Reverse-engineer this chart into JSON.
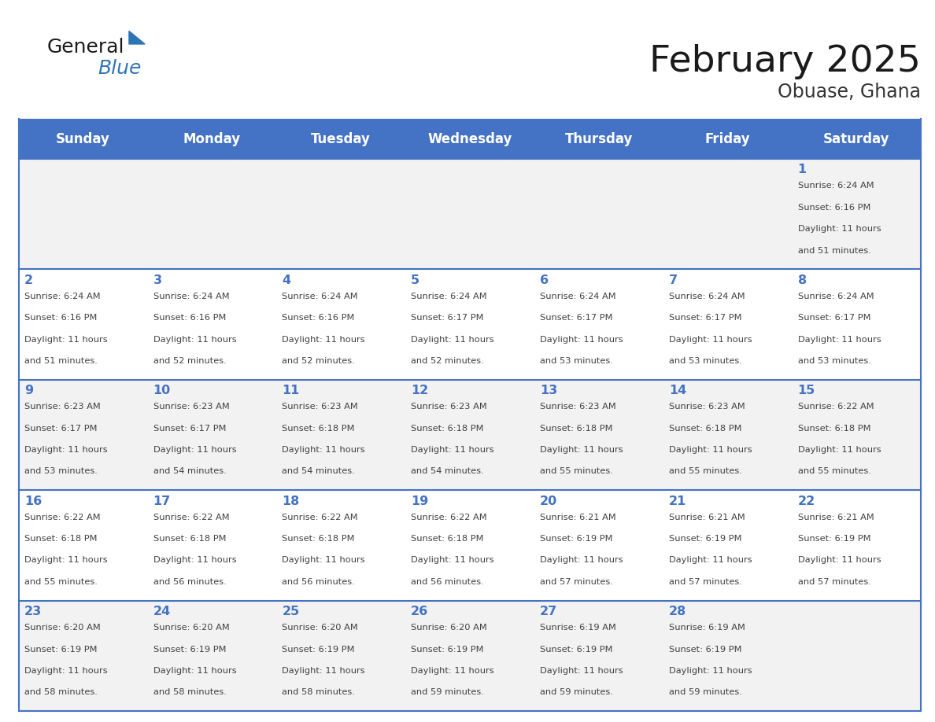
{
  "title": "February 2025",
  "subtitle": "Obuase, Ghana",
  "days_of_week": [
    "Sunday",
    "Monday",
    "Tuesday",
    "Wednesday",
    "Thursday",
    "Friday",
    "Saturday"
  ],
  "header_bg": "#4472C4",
  "header_text": "#FFFFFF",
  "cell_bg_even": "#F2F2F2",
  "cell_bg_odd": "#FFFFFF",
  "day_num_color": "#4472C4",
  "text_color": "#404040",
  "line_color": "#4472C4",
  "calendar": [
    [
      null,
      null,
      null,
      null,
      null,
      null,
      1
    ],
    [
      2,
      3,
      4,
      5,
      6,
      7,
      8
    ],
    [
      9,
      10,
      11,
      12,
      13,
      14,
      15
    ],
    [
      16,
      17,
      18,
      19,
      20,
      21,
      22
    ],
    [
      23,
      24,
      25,
      26,
      27,
      28,
      null
    ]
  ],
  "sun_times": {
    "1": {
      "rise": "6:24 AM",
      "set": "6:16 PM",
      "hours": "11 hours",
      "mins": "and 51 minutes."
    },
    "2": {
      "rise": "6:24 AM",
      "set": "6:16 PM",
      "hours": "11 hours",
      "mins": "and 51 minutes."
    },
    "3": {
      "rise": "6:24 AM",
      "set": "6:16 PM",
      "hours": "11 hours",
      "mins": "and 52 minutes."
    },
    "4": {
      "rise": "6:24 AM",
      "set": "6:16 PM",
      "hours": "11 hours",
      "mins": "and 52 minutes."
    },
    "5": {
      "rise": "6:24 AM",
      "set": "6:17 PM",
      "hours": "11 hours",
      "mins": "and 52 minutes."
    },
    "6": {
      "rise": "6:24 AM",
      "set": "6:17 PM",
      "hours": "11 hours",
      "mins": "and 53 minutes."
    },
    "7": {
      "rise": "6:24 AM",
      "set": "6:17 PM",
      "hours": "11 hours",
      "mins": "and 53 minutes."
    },
    "8": {
      "rise": "6:24 AM",
      "set": "6:17 PM",
      "hours": "11 hours",
      "mins": "and 53 minutes."
    },
    "9": {
      "rise": "6:23 AM",
      "set": "6:17 PM",
      "hours": "11 hours",
      "mins": "and 53 minutes."
    },
    "10": {
      "rise": "6:23 AM",
      "set": "6:17 PM",
      "hours": "11 hours",
      "mins": "and 54 minutes."
    },
    "11": {
      "rise": "6:23 AM",
      "set": "6:18 PM",
      "hours": "11 hours",
      "mins": "and 54 minutes."
    },
    "12": {
      "rise": "6:23 AM",
      "set": "6:18 PM",
      "hours": "11 hours",
      "mins": "and 54 minutes."
    },
    "13": {
      "rise": "6:23 AM",
      "set": "6:18 PM",
      "hours": "11 hours",
      "mins": "and 55 minutes."
    },
    "14": {
      "rise": "6:23 AM",
      "set": "6:18 PM",
      "hours": "11 hours",
      "mins": "and 55 minutes."
    },
    "15": {
      "rise": "6:22 AM",
      "set": "6:18 PM",
      "hours": "11 hours",
      "mins": "and 55 minutes."
    },
    "16": {
      "rise": "6:22 AM",
      "set": "6:18 PM",
      "hours": "11 hours",
      "mins": "and 55 minutes."
    },
    "17": {
      "rise": "6:22 AM",
      "set": "6:18 PM",
      "hours": "11 hours",
      "mins": "and 56 minutes."
    },
    "18": {
      "rise": "6:22 AM",
      "set": "6:18 PM",
      "hours": "11 hours",
      "mins": "and 56 minutes."
    },
    "19": {
      "rise": "6:22 AM",
      "set": "6:18 PM",
      "hours": "11 hours",
      "mins": "and 56 minutes."
    },
    "20": {
      "rise": "6:21 AM",
      "set": "6:19 PM",
      "hours": "11 hours",
      "mins": "and 57 minutes."
    },
    "21": {
      "rise": "6:21 AM",
      "set": "6:19 PM",
      "hours": "11 hours",
      "mins": "and 57 minutes."
    },
    "22": {
      "rise": "6:21 AM",
      "set": "6:19 PM",
      "hours": "11 hours",
      "mins": "and 57 minutes."
    },
    "23": {
      "rise": "6:20 AM",
      "set": "6:19 PM",
      "hours": "11 hours",
      "mins": "and 58 minutes."
    },
    "24": {
      "rise": "6:20 AM",
      "set": "6:19 PM",
      "hours": "11 hours",
      "mins": "and 58 minutes."
    },
    "25": {
      "rise": "6:20 AM",
      "set": "6:19 PM",
      "hours": "11 hours",
      "mins": "and 58 minutes."
    },
    "26": {
      "rise": "6:20 AM",
      "set": "6:19 PM",
      "hours": "11 hours",
      "mins": "and 59 minutes."
    },
    "27": {
      "rise": "6:19 AM",
      "set": "6:19 PM",
      "hours": "11 hours",
      "mins": "and 59 minutes."
    },
    "28": {
      "rise": "6:19 AM",
      "set": "6:19 PM",
      "hours": "11 hours",
      "mins": "and 59 minutes."
    }
  },
  "figsize": [
    11.88,
    9.18
  ],
  "dpi": 100
}
